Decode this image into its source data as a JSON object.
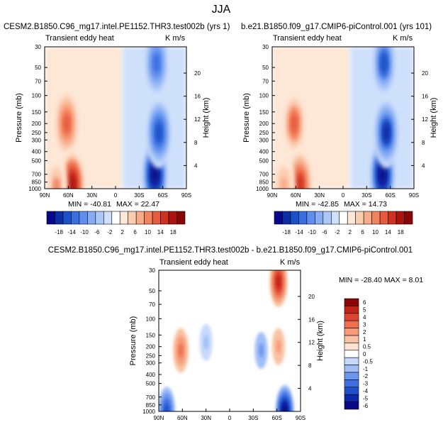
{
  "figure_title": "JJA",
  "colors": {
    "diverging": [
      "#08088c",
      "#0a2fa8",
      "#1a50c8",
      "#3a6ee0",
      "#5f8fee",
      "#86acf4",
      "#abc7f8",
      "#cfe0fb",
      "#ffffff",
      "#fde7d6",
      "#fbcdb0",
      "#f8ab89",
      "#f3825f",
      "#e75a3c",
      "#cf3220",
      "#ad1410",
      "#8a0606"
    ],
    "diff": [
      "#08088c",
      "#0c28a6",
      "#1f4fc9",
      "#3f70e0",
      "#6d96ee",
      "#a0bdf5",
      "#c6d9fa",
      "#ffffff",
      "#fde4d2",
      "#f9c2a3",
      "#f59b78",
      "#ee6f4e",
      "#de4530",
      "#c02417",
      "#8a0606"
    ]
  },
  "chart_data": [
    {
      "type": "heatmap",
      "title_left": "CESM2.B1850.C96_mg17.intel.PE1152.THR3.test002b (yrs 1)",
      "subtitle_left": "Transient eddy heat",
      "units": "K m/s",
      "xlabel": "",
      "ylabel": "Pressure (mb)",
      "ylabel_right": "Height (km)",
      "x_ticks": [
        "90N",
        "60N",
        "30N",
        "0",
        "30S",
        "60S",
        "90S"
      ],
      "y_ticks": [
        "30",
        "50",
        "70",
        "100",
        "150",
        "200",
        "250",
        "300",
        "400",
        "500",
        "700",
        "850",
        "1000"
      ],
      "y_right_ticks": [
        "20",
        "16",
        "12",
        "8",
        "4"
      ],
      "min_label": "MIN = -40.81",
      "max_label": "MAX = 22.47",
      "colorbar_ticks": [
        "-18",
        "-14",
        "-10",
        "-6",
        "-2",
        "2",
        "6",
        "10",
        "14",
        "18"
      ],
      "features": [
        {
          "lat": 62,
          "p": 200,
          "value": 12
        },
        {
          "lat": 55,
          "p": 900,
          "value": 16
        },
        {
          "lat": 75,
          "p": 950,
          "value": 8
        },
        {
          "lat": -50,
          "p": 700,
          "value": -18
        },
        {
          "lat": -55,
          "p": 250,
          "value": -14
        },
        {
          "lat": -52,
          "p": 45,
          "value": -12
        }
      ]
    },
    {
      "type": "heatmap",
      "title_left": "b.e21.B1850.f09_g17.CMIP6-piControl.001 (yrs 101)",
      "subtitle_left": "Transient eddy heat",
      "units": "K m/s",
      "xlabel": "",
      "ylabel": "Pressure (mb)",
      "ylabel_right": "Height (km)",
      "x_ticks": [
        "90N",
        "60N",
        "30N",
        "0",
        "30S",
        "60S",
        "90S"
      ],
      "y_ticks": [
        "30",
        "50",
        "70",
        "100",
        "150",
        "200",
        "250",
        "300",
        "400",
        "500",
        "700",
        "850",
        "1000"
      ],
      "y_right_ticks": [
        "20",
        "16",
        "12",
        "8",
        "4"
      ],
      "min_label": "MIN = -42.85",
      "max_label": "MAX = 14.73",
      "colorbar_ticks": [
        "-18",
        "-14",
        "-10",
        "-6",
        "-2",
        "2",
        "6",
        "10",
        "14",
        "18"
      ],
      "features": [
        {
          "lat": 62,
          "p": 200,
          "value": 11
        },
        {
          "lat": 55,
          "p": 900,
          "value": 14
        },
        {
          "lat": 75,
          "p": 950,
          "value": 7
        },
        {
          "lat": -50,
          "p": 700,
          "value": -18
        },
        {
          "lat": -55,
          "p": 250,
          "value": -15
        },
        {
          "lat": -52,
          "p": 45,
          "value": -13
        }
      ]
    },
    {
      "type": "heatmap",
      "title_center": "CESM2.B1850.C96_mg17.intel.PE1152.THR3.test002b - b.e21.B1850.f09_g17.CMIP6-piControl.001",
      "subtitle_left": "Transient eddy heat",
      "units": "K m/s",
      "xlabel": "",
      "ylabel": "Pressure (mb)",
      "ylabel_right": "Height (km)",
      "x_ticks": [
        "90N",
        "60N",
        "30N",
        "0",
        "30S",
        "60S",
        "90S"
      ],
      "y_ticks": [
        "30",
        "50",
        "70",
        "100",
        "150",
        "200",
        "250",
        "300",
        "400",
        "500",
        "700",
        "850",
        "1000"
      ],
      "y_right_ticks": [
        "20",
        "16",
        "12",
        "8",
        "4"
      ],
      "minmax_label": "MIN = -28.40   MAX =  8.01",
      "colorbar_ticks": [
        "6",
        "5",
        "4",
        "3",
        "2",
        "1",
        "0.5",
        "0",
        "-0.5",
        "-1",
        "-2",
        "-3",
        "-4",
        "-5",
        "-6"
      ],
      "features": [
        {
          "lat": 62,
          "p": 220,
          "value": 3
        },
        {
          "lat": -62,
          "p": 40,
          "value": 5
        },
        {
          "lat": -62,
          "p": 200,
          "value": 2
        },
        {
          "lat": 30,
          "p": 180,
          "value": -1
        },
        {
          "lat": -40,
          "p": 220,
          "value": -1.5
        },
        {
          "lat": 80,
          "p": 990,
          "value": -4
        },
        {
          "lat": -70,
          "p": 990,
          "value": -6
        }
      ]
    }
  ]
}
